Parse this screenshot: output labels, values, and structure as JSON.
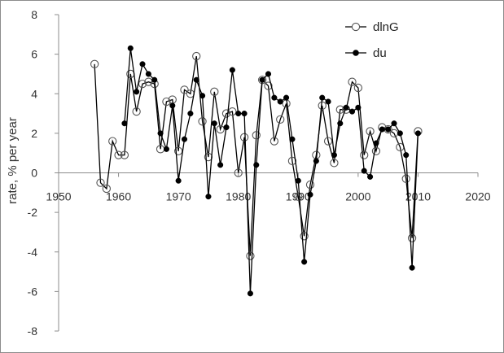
{
  "chart_data": {
    "type": "line",
    "ylabel": "rate, % per year",
    "xlim": [
      1950,
      2020
    ],
    "ylim": [
      -8,
      8
    ],
    "x_ticks": [
      1950,
      1960,
      1970,
      1980,
      1990,
      2000,
      2010,
      2020
    ],
    "y_ticks": [
      8,
      6,
      4,
      2,
      0,
      -2,
      -4,
      -6,
      -8
    ],
    "grid": false,
    "legend_position": "top-right",
    "series": [
      {
        "name": "dlnG",
        "marker": "open-circle",
        "color": "#000000",
        "x": [
          1956,
          1957,
          1958,
          1959,
          1960,
          1961,
          1962,
          1963,
          1964,
          1965,
          1966,
          1967,
          1968,
          1969,
          1970,
          1971,
          1972,
          1973,
          1974,
          1975,
          1976,
          1977,
          1978,
          1979,
          1980,
          1981,
          1982,
          1983,
          1984,
          1985,
          1986,
          1987,
          1988,
          1989,
          1990,
          1991,
          1992,
          1993,
          1994,
          1995,
          1996,
          1997,
          1998,
          1999,
          2000,
          2001,
          2002,
          2003,
          2004,
          2005,
          2006,
          2007,
          2008,
          2009,
          2010
        ],
        "y": [
          5.5,
          -0.5,
          -0.8,
          1.6,
          0.9,
          0.9,
          5.0,
          3.1,
          4.5,
          4.6,
          4.5,
          1.2,
          3.6,
          3.7,
          1.1,
          4.2,
          4.0,
          5.9,
          2.6,
          0.8,
          4.1,
          2.2,
          3.0,
          3.1,
          0.0,
          1.8,
          -4.2,
          1.9,
          4.7,
          4.4,
          1.6,
          2.7,
          3.5,
          0.6,
          -1.2,
          -3.2,
          -0.6,
          0.9,
          3.4,
          1.6,
          0.5,
          3.2,
          3.2,
          4.6,
          4.3,
          0.9,
          2.1,
          1.1,
          2.3,
          2.2,
          2.0,
          1.3,
          -0.3,
          -3.3,
          2.1
        ]
      },
      {
        "name": "du",
        "marker": "filled-circle",
        "color": "#000000",
        "x": [
          1961,
          1962,
          1963,
          1964,
          1965,
          1966,
          1967,
          1968,
          1969,
          1970,
          1971,
          1972,
          1973,
          1974,
          1975,
          1976,
          1977,
          1978,
          1979,
          1980,
          1981,
          1982,
          1983,
          1984,
          1985,
          1986,
          1987,
          1988,
          1989,
          1990,
          1991,
          1992,
          1993,
          1994,
          1995,
          1996,
          1997,
          1998,
          1999,
          2000,
          2001,
          2002,
          2003,
          2004,
          2005,
          2006,
          2007,
          2008,
          2009,
          2010
        ],
        "y": [
          2.5,
          6.3,
          4.1,
          5.5,
          5.0,
          4.7,
          2.0,
          1.2,
          3.4,
          -0.4,
          1.7,
          3.0,
          4.7,
          3.9,
          -1.2,
          2.5,
          0.4,
          2.3,
          5.2,
          3.0,
          3.0,
          -6.1,
          0.4,
          4.7,
          5.0,
          3.8,
          3.6,
          3.8,
          1.7,
          -0.4,
          -4.5,
          -1.1,
          0.6,
          3.8,
          3.6,
          0.9,
          2.5,
          3.3,
          3.1,
          3.3,
          0.1,
          -0.2,
          1.5,
          2.2,
          2.2,
          2.5,
          2.0,
          0.9,
          -4.8,
          2.0
        ]
      }
    ]
  }
}
